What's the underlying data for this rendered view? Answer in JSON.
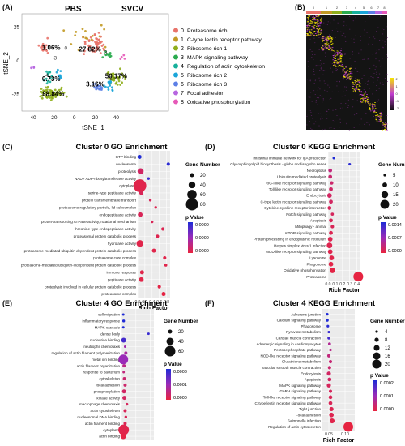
{
  "figure": {
    "panels": {
      "A": {
        "label": "(A)",
        "left_title": "PBS",
        "right_title": "SVCV",
        "xlabel": "tSNE_1",
        "ylabel": "tSNE_2",
        "x_ticks": [
          "-40",
          "-20",
          "0",
          "20",
          "40"
        ],
        "y_ticks": [
          "25",
          "0",
          "-25"
        ],
        "percent_labels": [
          {
            "text": "1.06%",
            "x": -22,
            "y": 8
          },
          {
            "text": "0.73%",
            "x": -22,
            "y": -15
          },
          {
            "text": "88.84%",
            "x": -20,
            "y": -26
          },
          {
            "text": "27.82%",
            "x": 15,
            "y": 7
          },
          {
            "text": "50.17%",
            "x": 40,
            "y": -13
          },
          {
            "text": "3.16%",
            "x": 20,
            "y": -19
          }
        ],
        "cluster_numbers": [
          {
            "text": "3",
            "x": -18,
            "y": 1
          },
          {
            "text": "4",
            "x": -26,
            "y": -12
          },
          {
            "text": "0",
            "x": -8,
            "y": 8
          },
          {
            "text": "3",
            "x": 30,
            "y": 5
          },
          {
            "text": "2",
            "x": 21,
            "y": -18
          },
          {
            "text": "1",
            "x": 35,
            "y": -14
          }
        ],
        "legend": [
          {
            "num": "0",
            "label": "Proteasome rich",
            "color": "#e8736a"
          },
          {
            "num": "1",
            "label": "C-type lectin receptor pathway",
            "color": "#c29a24"
          },
          {
            "num": "2",
            "label": "Ribosome rich 1",
            "color": "#8fae1b"
          },
          {
            "num": "3",
            "label": "MAPK signaling pathway",
            "color": "#2aab4e"
          },
          {
            "num": "4",
            "label": "Regulation of actin cytoskeleton",
            "color": "#16b09b"
          },
          {
            "num": "5",
            "label": "Ribosome rich 2",
            "color": "#1aa5d9"
          },
          {
            "num": "6",
            "label": "Ribosome rich 3",
            "color": "#5c7fe6"
          },
          {
            "num": "7",
            "label": "Focal adhesion",
            "color": "#b766e0"
          },
          {
            "num": "8",
            "label": "Oxidative phosphorylation",
            "color": "#e659b8"
          }
        ]
      },
      "B": {
        "label": "(B)",
        "column_labels": [
          "0",
          "1",
          "2",
          "3",
          "4",
          "5",
          "6",
          "7",
          "8"
        ],
        "column_colors": [
          "#e8736a",
          "#c29a24",
          "#8fae1b",
          "#2aab4e",
          "#16b09b",
          "#1aa5d9",
          "#5c7fe6",
          "#b766e0",
          "#e659b8"
        ],
        "colorbar_ticks": [
          "2",
          "1",
          "0",
          "-1",
          "-2"
        ]
      },
      "C": {
        "label": "(C)",
        "title": "Cluster 0 GO Enrichment",
        "xlabel": "Rich Factor",
        "x_ticks": [
          "0.0",
          "0.2",
          "0.4",
          "0.6",
          "0.8"
        ],
        "size_legend_title": "Gene Number",
        "size_legend": [
          "20",
          "40",
          "60",
          "80"
        ],
        "color_legend_title": "p Value",
        "color_ticks": [
          "0.0000",
          "0.0000",
          "0.0000"
        ]
      },
      "D": {
        "label": "(D)",
        "title": "Cluster 0 KEGG Enrichment",
        "xlabel": "Rich Factor",
        "x_ticks": [
          "0.0",
          "0.1",
          "0.2",
          "0.3",
          "0.4"
        ],
        "size_legend_title": "Gene Number",
        "size_legend": [
          "5",
          "10",
          "15",
          "20"
        ],
        "color_legend_title": "p Value",
        "color_ticks": [
          "0.0014",
          "0.0007",
          "0.0000"
        ]
      },
      "E": {
        "label": "(E)",
        "title": "Cluster 4 GO Enrichment",
        "xlabel": "Rich Factor",
        "x_ticks": [
          "0.0",
          "0.4",
          "0.8"
        ],
        "size_legend_title": "Gene Number",
        "size_legend": [
          "20",
          "40",
          "60"
        ],
        "color_legend_title": "p Value",
        "color_ticks": [
          "0.0003",
          "0.0001",
          "0.0000"
        ]
      },
      "F": {
        "label": "(F)",
        "title": "Cluster 4 KEGG Enrichment",
        "xlabel": "Rich Factor",
        "x_ticks": [
          "0.05",
          "0.10"
        ],
        "size_legend_title": "Gene Number",
        "size_legend": [
          "4",
          "8",
          "12",
          "16",
          "20"
        ],
        "color_legend_title": "p Value",
        "color_ticks": [
          "0.0002",
          "0.0001",
          "0.0000"
        ]
      }
    }
  },
  "chart_data": [
    {
      "panel": "C",
      "type": "scatter",
      "title": "Cluster 0 GO Enrichment",
      "xlabel": "Rich Factor",
      "ylabel": "",
      "xlim": [
        0,
        0.9
      ],
      "categories": [
        "GTP binding",
        "nucleosome",
        "proteolysis",
        "NAD+ ADP-ribosyltransferase activity",
        "cytoplasm",
        "serine-type peptidase activity",
        "protein transmembrane transport",
        "proteasome regulatory particle, lid subcomplex",
        "endopeptidase activity",
        "proton-transporting ATPase activity, rotational mechanism",
        "threonine-type endopeptidase activity",
        "proteasomal protein catabolic process",
        "hydrolase activity",
        "proteasome-mediated ubiquitin-dependent protein catabolic process",
        "proteasome core complex",
        "proteasome-mediated ubiquitin-independent protein catabolic process",
        "immune response",
        "peptidase activity",
        "proteolysis involved in cellular protein catabolic process",
        "proteasome complex"
      ],
      "rich_factor": [
        0.05,
        0.85,
        0.08,
        0.3,
        0.06,
        0.1,
        0.35,
        0.5,
        0.07,
        0.4,
        0.7,
        0.55,
        0.06,
        0.45,
        0.75,
        0.78,
        0.12,
        0.1,
        0.6,
        0.72
      ],
      "gene_number": [
        20,
        15,
        35,
        10,
        85,
        20,
        10,
        10,
        25,
        10,
        15,
        15,
        40,
        20,
        15,
        12,
        20,
        25,
        15,
        20
      ],
      "p_level": [
        0.0,
        0.05,
        0.85,
        0.1,
        0.95,
        0.9,
        0.9,
        0.92,
        0.9,
        0.9,
        0.92,
        0.93,
        0.95,
        0.95,
        0.95,
        0.95,
        0.95,
        0.96,
        0.97,
        0.98
      ]
    },
    {
      "panel": "D",
      "type": "scatter",
      "title": "Cluster 0 KEGG Enrichment",
      "xlabel": "Rich Factor",
      "ylabel": "",
      "xlim": [
        0,
        0.45
      ],
      "categories": [
        "Intestinal immune network for IgA production",
        "Glycosphingolipid biosynthesis - globo and isoglobo series",
        "Necroptosis",
        "Ubiquitin mediated proteolysis",
        "RIG-I-like receptor signaling pathway",
        "Toll-like receptor signaling pathway",
        "Endocytosis",
        "C-type lectin receptor signaling pathway",
        "Cytokine-cytokine receptor interaction",
        "Notch signaling pathway",
        "Apoptosis",
        "Mitophagy - animal",
        "mTOR signaling pathway",
        "Protein processing in endoplasmic reticulum",
        "Herpes simplex virus 1 infection",
        "NOD-like receptor signaling pathway",
        "Lysosome",
        "Phagosome",
        "Oxidative phosphorylation",
        "Proteasome"
      ],
      "rich_factor": [
        0.08,
        0.3,
        0.03,
        0.03,
        0.05,
        0.04,
        0.02,
        0.04,
        0.02,
        0.06,
        0.04,
        0.06,
        0.04,
        0.03,
        0.02,
        0.03,
        0.05,
        0.04,
        0.06,
        0.42
      ],
      "gene_number": [
        5,
        5,
        8,
        8,
        7,
        8,
        10,
        8,
        8,
        6,
        8,
        7,
        8,
        10,
        12,
        10,
        10,
        10,
        12,
        22
      ],
      "p_level": [
        0.0,
        0.05,
        0.75,
        0.8,
        0.82,
        0.84,
        0.86,
        0.86,
        0.88,
        0.88,
        0.9,
        0.9,
        0.92,
        0.92,
        0.93,
        0.94,
        0.95,
        0.96,
        0.97,
        0.99
      ]
    },
    {
      "panel": "E",
      "type": "scatter",
      "title": "Cluster 4 GO Enrichment",
      "xlabel": "Rich Factor",
      "ylabel": "",
      "xlim": [
        0,
        0.9
      ],
      "categories": [
        "cell migration",
        "inflammatory response",
        "MAPK cascade",
        "dense body",
        "nucleotide binding",
        "neutrophil chemotaxis",
        "regulation of actin filament polymerization",
        "metal ion binding",
        "actin filament organization",
        "response to bacterium",
        "cytoskeleton",
        "focal adhesion",
        "phosphorylation",
        "kinase activity",
        "macrophage chemotaxis",
        "actin cytoskeleton",
        "nucleosomal DNA binding",
        "actin filament binding",
        "cytoplasm",
        "actin binding"
      ],
      "rich_factor": [
        0.05,
        0.06,
        0.05,
        0.75,
        0.06,
        0.1,
        0.12,
        0.05,
        0.07,
        0.06,
        0.08,
        0.1,
        0.07,
        0.08,
        0.15,
        0.1,
        0.12,
        0.1,
        0.06,
        0.05
      ],
      "gene_number": [
        10,
        12,
        10,
        5,
        25,
        10,
        15,
        55,
        15,
        10,
        15,
        15,
        20,
        20,
        12,
        15,
        12,
        15,
        60,
        30
      ],
      "p_level": [
        0.0,
        0.0,
        0.0,
        0.1,
        0.15,
        0.55,
        0.6,
        0.5,
        0.7,
        0.75,
        0.8,
        0.82,
        0.85,
        0.86,
        0.88,
        0.9,
        0.9,
        0.92,
        0.95,
        0.98
      ]
    },
    {
      "panel": "F",
      "type": "scatter",
      "title": "Cluster 4 KEGG Enrichment",
      "xlabel": "Rich Factor",
      "ylabel": "",
      "xlim": [
        0.03,
        0.13
      ],
      "categories": [
        "Adherens junction",
        "Calcium signaling pathway",
        "Phagosome",
        "Pyruvate metabolism",
        "Cardiac muscle contraction",
        "Adrenergic signaling in cardiomyocytes",
        "Pentose phosphate pathway",
        "NOD-like receptor signaling pathway",
        "Glutathione metabolism",
        "Vascular smooth muscle contraction",
        "Endocytosis",
        "Apoptosis",
        "MAPK signaling pathway",
        "GnRH signaling pathway",
        "Toll-like receptor signaling pathway",
        "C-type lectin receptor signaling pathway",
        "Tight junction",
        "Focal adhesion",
        "Salmonella infection",
        "Regulation of actin cytoskeleton"
      ],
      "rich_factor": [
        0.045,
        0.045,
        0.047,
        0.05,
        0.05,
        0.052,
        0.055,
        0.05,
        0.055,
        0.052,
        0.05,
        0.052,
        0.05,
        0.055,
        0.055,
        0.055,
        0.058,
        0.058,
        0.06,
        0.11
      ],
      "gene_number": [
        4,
        5,
        4,
        4,
        5,
        5,
        4,
        6,
        6,
        6,
        8,
        7,
        8,
        6,
        7,
        7,
        8,
        9,
        10,
        22
      ],
      "p_level": [
        0.0,
        0.0,
        0.05,
        0.1,
        0.15,
        0.65,
        0.7,
        0.75,
        0.78,
        0.8,
        0.85,
        0.85,
        0.88,
        0.88,
        0.9,
        0.9,
        0.92,
        0.93,
        0.95,
        0.99
      ]
    }
  ]
}
